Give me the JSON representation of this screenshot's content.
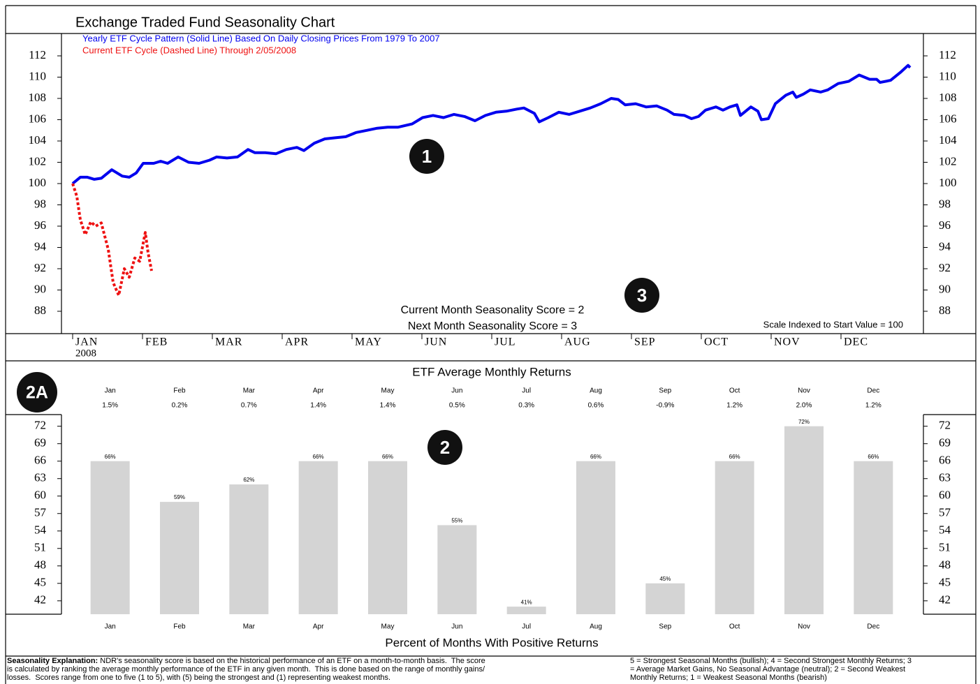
{
  "chart_data": [
    {
      "type": "line",
      "title": "Exchange Traded Fund Seasonality Chart",
      "legend": "upper left",
      "mirror_axis": true,
      "xlim": [
        0,
        12
      ],
      "xticks": [
        {
          "value": 0,
          "label": "JAN"
        },
        {
          "value": 1,
          "label": "FEB"
        },
        {
          "value": 2,
          "label": "MAR"
        },
        {
          "value": 3,
          "label": "APR"
        },
        {
          "value": 4,
          "label": "MAY"
        },
        {
          "value": 5,
          "label": "JUN"
        },
        {
          "value": 6,
          "label": "JUL"
        },
        {
          "value": 7,
          "label": "AUG"
        },
        {
          "value": 8,
          "label": "SEP"
        },
        {
          "value": 9,
          "label": "OCT"
        },
        {
          "value": 10,
          "label": "NOV"
        },
        {
          "value": 11,
          "label": "DEC"
        }
      ],
      "x_note": "2008",
      "ylim": [
        85.9,
        114.1
      ],
      "yticks": [
        88,
        90,
        92,
        94,
        96,
        98,
        100,
        102,
        104,
        106,
        108,
        110,
        112
      ],
      "annotations": [
        "Current Month Seasonality Score = 2",
        "Next Month Seasonality Score = 3",
        "Scale Indexed to Start Value = 100"
      ],
      "series": [
        {
          "name": "Yearly ETF Cycle Pattern (Solid Line) Based On Daily Closing Prices From 1979 To 2007",
          "color": "#0000ee",
          "dashed": false,
          "x": [
            0,
            0.11,
            0.21,
            0.31,
            0.41,
            0.56,
            0.71,
            0.81,
            0.91,
            1.01,
            1.16,
            1.26,
            1.36,
            1.51,
            1.66,
            1.81,
            1.96,
            2.06,
            2.21,
            2.36,
            2.51,
            2.61,
            2.76,
            2.91,
            3.06,
            3.21,
            3.31,
            3.46,
            3.61,
            3.76,
            3.91,
            4.06,
            4.21,
            4.36,
            4.51,
            4.66,
            4.86,
            5.01,
            5.16,
            5.31,
            5.46,
            5.61,
            5.76,
            5.91,
            6.06,
            6.21,
            6.36,
            6.46,
            6.61,
            6.68,
            6.81,
            6.96,
            7.11,
            7.26,
            7.41,
            7.56,
            7.71,
            7.81,
            7.91,
            8.06,
            8.21,
            8.36,
            8.51,
            8.61,
            8.76,
            8.86,
            8.96,
            9.06,
            9.21,
            9.31,
            9.41,
            9.51,
            9.56,
            9.71,
            9.81,
            9.86,
            9.96,
            10.06,
            10.21,
            10.31,
            10.36,
            10.46,
            10.56,
            10.71,
            10.81,
            10.96,
            11.11,
            11.26,
            11.41,
            11.51,
            11.56,
            11.71,
            11.86,
            11.96,
            11.99
          ],
          "values": [
            100,
            100.6,
            100.6,
            100.4,
            100.5,
            101.3,
            100.7,
            100.6,
            101.0,
            101.9,
            101.9,
            102.1,
            101.9,
            102.5,
            102.0,
            101.9,
            102.2,
            102.5,
            102.4,
            102.5,
            103.2,
            102.9,
            102.9,
            102.8,
            103.2,
            103.4,
            103.1,
            103.8,
            104.2,
            104.3,
            104.4,
            104.8,
            105.0,
            105.2,
            105.3,
            105.3,
            105.6,
            106.2,
            106.4,
            106.2,
            106.5,
            106.3,
            105.9,
            106.4,
            106.7,
            106.8,
            107.0,
            107.1,
            106.6,
            105.8,
            106.2,
            106.7,
            106.5,
            106.8,
            107.1,
            107.5,
            108.0,
            107.9,
            107.4,
            107.5,
            107.2,
            107.3,
            106.9,
            106.5,
            106.4,
            106.1,
            106.3,
            106.9,
            107.2,
            106.9,
            107.2,
            107.4,
            106.4,
            107.2,
            106.8,
            106.0,
            106.1,
            107.5,
            108.3,
            108.6,
            108.1,
            108.4,
            108.8,
            108.6,
            108.8,
            109.4,
            109.6,
            110.2,
            109.8,
            109.8,
            109.5,
            109.7,
            110.5,
            111.1,
            110.9
          ]
        },
        {
          "name": "Current ETF Cycle (Dashed Line) Through 2/05/2008",
          "color": "#ee1111",
          "dashed": true,
          "x": [
            0,
            0.06,
            0.11,
            0.18,
            0.26,
            0.33,
            0.41,
            0.51,
            0.58,
            0.66,
            0.74,
            0.81,
            0.89,
            0.96,
            1.04,
            1.08,
            1.13
          ],
          "values": [
            100,
            98.8,
            96.6,
            95.2,
            96.4,
            96.0,
            96.3,
            93.8,
            90.7,
            89.5,
            92.0,
            91.2,
            93.0,
            92.7,
            95.4,
            93.5,
            91.8
          ]
        }
      ]
    },
    {
      "type": "bar",
      "title": "ETF Average Monthly Returns",
      "xlabel": "Percent of Months With Positive Returns",
      "mirror_axis": true,
      "color": "#d4d4d4",
      "categories": [
        "Jan",
        "Feb",
        "Mar",
        "Apr",
        "May",
        "Jun",
        "Jul",
        "Aug",
        "Sep",
        "Oct",
        "Nov",
        "Dec"
      ],
      "values": [
        66,
        59,
        62,
        66,
        66,
        55,
        41,
        66,
        45,
        66,
        72,
        66
      ],
      "value_labels": [
        "66%",
        "59%",
        "62%",
        "66%",
        "66%",
        "55%",
        "41%",
        "66%",
        "45%",
        "66%",
        "72%",
        "66%"
      ],
      "average_returns": {
        "values": [
          1.5,
          0.2,
          0.7,
          1.4,
          1.4,
          0.5,
          0.3,
          0.6,
          -0.9,
          1.2,
          2.0,
          1.2
        ],
        "value_labels": [
          "1.5%",
          "0.2%",
          "0.7%",
          "1.4%",
          "1.4%",
          "0.5%",
          "0.3%",
          "0.6%",
          "-0.9%",
          "1.2%",
          "2.0%",
          "1.2%"
        ]
      },
      "ylim": [
        39.7,
        74.0
      ],
      "yticks": [
        42,
        45,
        48,
        51,
        54,
        57,
        60,
        63,
        66,
        69,
        72
      ]
    }
  ],
  "badges": [
    "1",
    "2",
    "2A",
    "3"
  ],
  "footer": {
    "heading": "Seasonality Explanation:",
    "left_lines": [
      " NDR's seasonality score is based on the historical performance of an ETF on a month-to-month basis.  The score",
      "is calculated by ranking the average monthly performance of the ETF in any given month.  This is done based on the range of monthly gains/",
      "losses.  Scores range from one to five (1 to 5), with (5) being the strongest and (1) representing weakest months."
    ],
    "right_lines": [
      "5 = Strongest Seasonal Months (bullish); 4 = Second Strongest Monthly Returns; 3",
      "= Average Market Gains, No Seasonal Advantage (neutral); 2 = Second Weakest",
      "Monthly Returns; 1 = Weakest Seasonal Months (bearish)"
    ]
  }
}
